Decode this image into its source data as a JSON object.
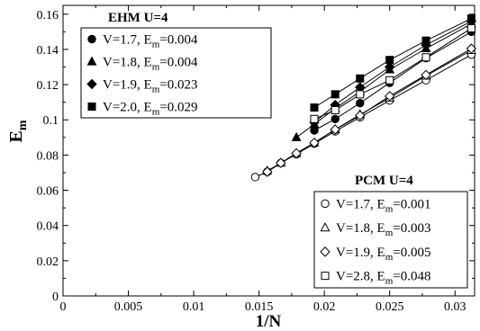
{
  "chart_data": {
    "type": "line",
    "xlabel": "1/N",
    "ylabel": "E",
    "ylabel_sub": "m",
    "xlim": [
      0,
      0.0315
    ],
    "ylim": [
      0,
      0.165
    ],
    "xticks": [
      0,
      0.005,
      0.01,
      0.015,
      0.02,
      0.025,
      0.03
    ],
    "xtick_labels": [
      "0",
      "0.005",
      "0.01",
      "0.015",
      "0.02",
      "0.025",
      "0.03"
    ],
    "yticks": [
      0,
      0.02,
      0.04,
      0.06,
      0.08,
      0.1,
      0.12,
      0.14,
      0.16
    ],
    "ytick_labels": [
      "0",
      "0.02",
      "0.04",
      "0.06",
      "0.08",
      "0.1",
      "0.12",
      "0.14",
      "0.16"
    ],
    "grid": false,
    "legends": [
      {
        "title": "EHM  U=4",
        "placement": "top-left",
        "entries": [
          {
            "marker": "circle-filled",
            "pre": "V=1.7, E",
            "sub": "m",
            "post": "=0.004"
          },
          {
            "marker": "triangle-filled",
            "pre": "V=1.8, E",
            "sub": "m",
            "post": "=0.004"
          },
          {
            "marker": "diamond-filled",
            "pre": "V=1.9, E",
            "sub": "m",
            "post": "=0.023"
          },
          {
            "marker": "square-filled",
            "pre": "V=2.0, E",
            "sub": "m",
            "post": "=0.029"
          }
        ]
      },
      {
        "title": "PCM  U=4",
        "placement": "bottom-right",
        "entries": [
          {
            "marker": "circle-open",
            "pre": "V=1.7, E",
            "sub": "m",
            "post": "=0.001"
          },
          {
            "marker": "triangle-open",
            "pre": "V=1.8, E",
            "sub": "m",
            "post": "=0.003"
          },
          {
            "marker": "diamond-open",
            "pre": "V=1.9, E",
            "sub": "m",
            "post": "=0.005"
          },
          {
            "marker": "square-open",
            "pre": "V=2.8, E",
            "sub": "m",
            "post": "=0.048"
          }
        ]
      }
    ],
    "series": [
      {
        "marker": "circle-filled",
        "x": [
          0.01923,
          0.02083,
          0.02273,
          0.025,
          0.02778,
          0.03125
        ],
        "y": [
          0.094,
          0.1005,
          0.1095,
          0.121,
          0.135,
          0.15
        ]
      },
      {
        "marker": "triangle-filled",
        "x": [
          0.01786,
          0.01923,
          0.02083,
          0.02273,
          0.025,
          0.02778,
          0.03125
        ],
        "y": [
          0.09,
          0.0975,
          0.1065,
          0.116,
          0.1285,
          0.1405,
          0.1545
        ]
      },
      {
        "marker": "diamond-filled",
        "x": [
          0.01923,
          0.02083,
          0.02273,
          0.025,
          0.02778,
          0.03125
        ],
        "y": [
          0.0985,
          0.1085,
          0.1185,
          0.13,
          0.1425,
          0.156
        ]
      },
      {
        "marker": "square-filled",
        "x": [
          0.01923,
          0.02083,
          0.02273,
          0.025,
          0.02778,
          0.03125
        ],
        "y": [
          0.107,
          0.1145,
          0.1235,
          0.134,
          0.145,
          0.1575
        ]
      },
      {
        "marker": "circle-open",
        "x": [
          0.01471,
          0.01563,
          0.01667,
          0.01786,
          0.01923,
          0.02083,
          0.02273,
          0.025,
          0.02778,
          0.03125
        ],
        "y": [
          0.0675,
          0.0705,
          0.0755,
          0.0805,
          0.0865,
          0.0935,
          0.1015,
          0.111,
          0.1225,
          0.137
        ]
      },
      {
        "marker": "triangle-open",
        "x": [
          0.01563,
          0.01667,
          0.01786,
          0.01923,
          0.02083,
          0.02273,
          0.025,
          0.02778,
          0.03125
        ],
        "y": [
          0.071,
          0.0755,
          0.081,
          0.087,
          0.0945,
          0.103,
          0.1125,
          0.125,
          0.1395
        ]
      },
      {
        "marker": "diamond-open",
        "x": [
          0.01563,
          0.01667,
          0.01786,
          0.01923,
          0.02083,
          0.02273,
          0.025,
          0.02778,
          0.03125
        ],
        "y": [
          0.0705,
          0.0755,
          0.081,
          0.087,
          0.0945,
          0.1025,
          0.1135,
          0.1255,
          0.1405
        ]
      },
      {
        "marker": "square-open",
        "x": [
          0.01923,
          0.02083,
          0.02273,
          0.025,
          0.02778,
          0.03125
        ],
        "y": [
          0.1005,
          0.1055,
          0.1145,
          0.1225,
          0.1355,
          0.152
        ]
      }
    ]
  }
}
